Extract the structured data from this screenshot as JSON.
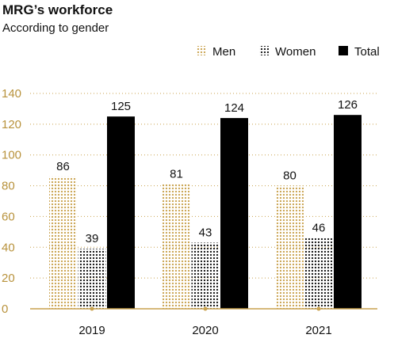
{
  "chart_data": {
    "type": "bar",
    "title": "MRG’s workforce",
    "subtitle": "According to gender",
    "categories": [
      "2019",
      "2020",
      "2021"
    ],
    "series": [
      {
        "name": "Men",
        "values": [
          86,
          81,
          80
        ],
        "color": "#c9a24e",
        "pattern": "dotted"
      },
      {
        "name": "Women",
        "values": [
          39,
          43,
          46
        ],
        "color": "#111111",
        "pattern": "dotted"
      },
      {
        "name": "Total",
        "values": [
          125,
          124,
          126
        ],
        "color": "#000000",
        "pattern": "solid"
      }
    ],
    "ylim": [
      0,
      140
    ],
    "yticks": [
      0,
      20,
      40,
      60,
      80,
      100,
      120,
      140
    ],
    "grid": true,
    "legend_position": "top-right",
    "axis_color": "#c9a24e"
  }
}
